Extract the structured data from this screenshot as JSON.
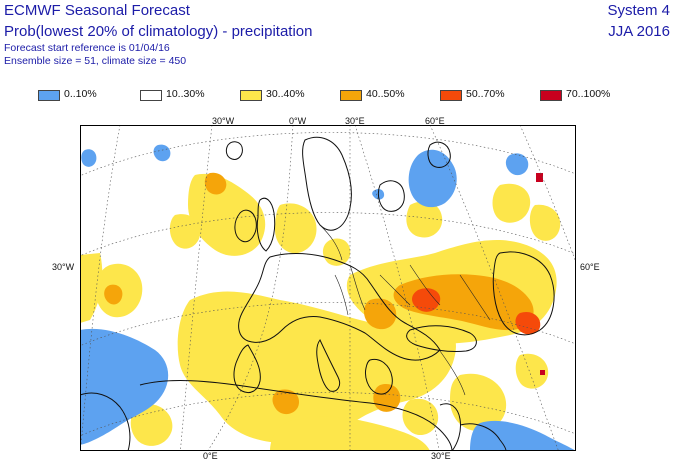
{
  "header": {
    "title": "ECMWF Seasonal Forecast",
    "subtitle": "Prob(lowest 20% of climatology) - precipitation",
    "forecast_start": "Forecast start reference is 01/04/16",
    "ensemble": "Ensemble size = 51, climate size = 450",
    "system": "System 4",
    "season": "JJA 2016"
  },
  "legend": [
    {
      "label": "0..10%",
      "color": "#5da2f0"
    },
    {
      "label": "10..30%",
      "color": "#ffffff"
    },
    {
      "label": "30..40%",
      "color": "#fde64b"
    },
    {
      "label": "40..50%",
      "color": "#f5a50a"
    },
    {
      "label": "50..70%",
      "color": "#f54a0a"
    },
    {
      "label": "70..100%",
      "color": "#c8001e"
    }
  ],
  "graticule_labels": {
    "top": [
      "30°W",
      "0°W",
      "30°E",
      "60°E"
    ],
    "left": "30°W",
    "right": "60°E",
    "bottom": [
      "0°E",
      "30°E"
    ]
  }
}
